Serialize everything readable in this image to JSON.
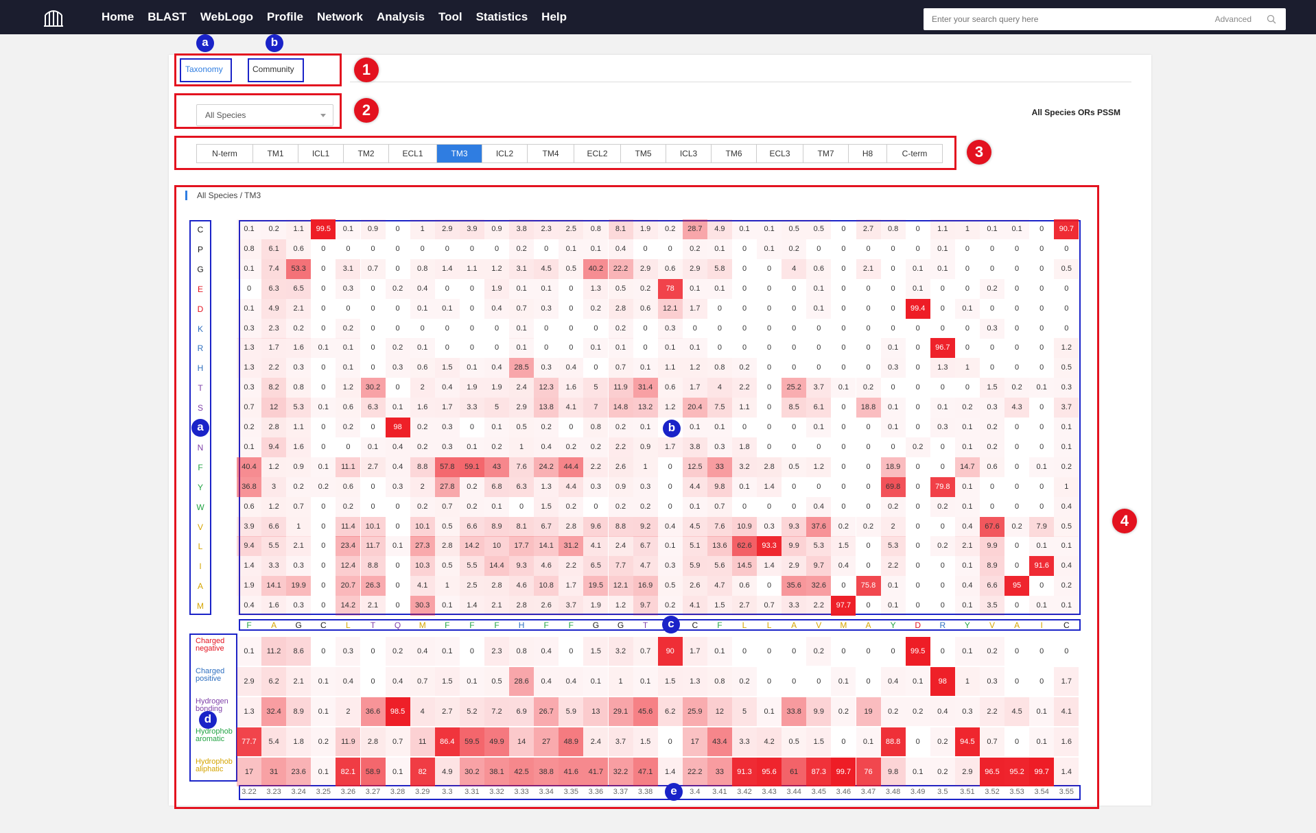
{
  "nav": {
    "items": [
      "Home",
      "BLAST",
      "WebLogo",
      "Profile",
      "Network",
      "Analysis",
      "Tool",
      "Statistics",
      "Help"
    ],
    "search_placeholder": "Enter your search query here",
    "advanced": "Advanced"
  },
  "tabs": [
    "Taxonomy",
    "Community"
  ],
  "species_select": "All Species",
  "pssm_title": "All Species ORs PSSM",
  "segments": [
    "N-term",
    "TM1",
    "ICL1",
    "TM2",
    "ECL1",
    "TM3",
    "ICL2",
    "TM4",
    "ECL2",
    "TM5",
    "ICL3",
    "TM6",
    "ECL3",
    "TM7",
    "H8",
    "C-term"
  ],
  "active_segment": "TM3",
  "breadcrumb": "All Species / TM3",
  "callouts": {
    "red": [
      "1",
      "2",
      "3",
      "4"
    ],
    "blue": [
      "a",
      "b",
      "a",
      "b",
      "c",
      "d",
      "e"
    ]
  },
  "aa_rows": [
    {
      "aa": "C",
      "color": "#1a1a1a"
    },
    {
      "aa": "P",
      "color": "#1a1a1a"
    },
    {
      "aa": "G",
      "color": "#1a1a1a"
    },
    {
      "aa": "E",
      "color": "#e3121f"
    },
    {
      "aa": "D",
      "color": "#e3121f"
    },
    {
      "aa": "K",
      "color": "#2e6fc0"
    },
    {
      "aa": "R",
      "color": "#2e6fc0"
    },
    {
      "aa": "H",
      "color": "#2e6fc0"
    },
    {
      "aa": "T",
      "color": "#7e3fa8"
    },
    {
      "aa": "S",
      "color": "#7e3fa8"
    },
    {
      "aa": "Q",
      "color": "#7e3fa8"
    },
    {
      "aa": "N",
      "color": "#7e3fa8"
    },
    {
      "aa": "F",
      "color": "#22a344"
    },
    {
      "aa": "Y",
      "color": "#22a344"
    },
    {
      "aa": "W",
      "color": "#22a344"
    },
    {
      "aa": "V",
      "color": "#d4a400"
    },
    {
      "aa": "L",
      "color": "#d4a400"
    },
    {
      "aa": "I",
      "color": "#d4a400"
    },
    {
      "aa": "A",
      "color": "#d4a400"
    },
    {
      "aa": "M",
      "color": "#d4a400"
    }
  ],
  "matrix": [
    [
      "0.1",
      "0.2",
      "1.1",
      "99.5",
      "0.1",
      "0.9",
      "0",
      "1",
      "2.9",
      "3.9",
      "0.9",
      "3.8",
      "2.3",
      "2.5",
      "0.8",
      "8.1",
      "1.9",
      "0.2",
      "28.7",
      "4.9",
      "0.1",
      "0.1",
      "0.5",
      "0.5",
      "0",
      "2.7",
      "0.8",
      "0",
      "1.1",
      "1",
      "0.1",
      "0.1",
      "0",
      "90.7"
    ],
    [
      "0.8",
      "6.1",
      "0.6",
      "0",
      "0",
      "0",
      "0",
      "0",
      "0",
      "0",
      "0",
      "0.2",
      "0",
      "0.1",
      "0.1",
      "0.4",
      "0",
      "0",
      "0.2",
      "0.1",
      "0",
      "0.1",
      "0.2",
      "0",
      "0",
      "0",
      "0",
      "0",
      "0.1",
      "0",
      "0",
      "0",
      "0",
      "0"
    ],
    [
      "0.1",
      "7.4",
      "53.3",
      "0",
      "3.1",
      "0.7",
      "0",
      "0.8",
      "1.4",
      "1.1",
      "1.2",
      "3.1",
      "4.5",
      "0.5",
      "40.2",
      "22.2",
      "2.9",
      "0.6",
      "2.9",
      "5.8",
      "0",
      "0",
      "4",
      "0.6",
      "0",
      "2.1",
      "0",
      "0.1",
      "0.1",
      "0",
      "0",
      "0",
      "0",
      "0.5"
    ],
    [
      "0",
      "6.3",
      "6.5",
      "0",
      "0.3",
      "0",
      "0.2",
      "0.4",
      "0",
      "0",
      "1.9",
      "0.1",
      "0.1",
      "0",
      "1.3",
      "0.5",
      "0.2",
      "78",
      "0.1",
      "0.1",
      "0",
      "0",
      "0",
      "0.1",
      "0",
      "0",
      "0",
      "0.1",
      "0",
      "0",
      "0.2",
      "0",
      "0",
      "0"
    ],
    [
      "0.1",
      "4.9",
      "2.1",
      "0",
      "0",
      "0",
      "0",
      "0.1",
      "0.1",
      "0",
      "0.4",
      "0.7",
      "0.3",
      "0",
      "0.2",
      "2.8",
      "0.6",
      "12.1",
      "1.7",
      "0",
      "0",
      "0",
      "0",
      "0.1",
      "0",
      "0",
      "0",
      "99.4",
      "0",
      "0.1",
      "0",
      "0",
      "0",
      "0"
    ],
    [
      "0.3",
      "2.3",
      "0.2",
      "0",
      "0.2",
      "0",
      "0",
      "0",
      "0",
      "0",
      "0",
      "0.1",
      "0",
      "0",
      "0",
      "0.2",
      "0",
      "0.3",
      "0",
      "0",
      "0",
      "0",
      "0",
      "0",
      "0",
      "0",
      "0",
      "0",
      "0",
      "0",
      "0.3",
      "0",
      "0",
      "0"
    ],
    [
      "1.3",
      "1.7",
      "1.6",
      "0.1",
      "0.1",
      "0",
      "0.2",
      "0.1",
      "0",
      "0",
      "0",
      "0.1",
      "0",
      "0",
      "0.1",
      "0.1",
      "0",
      "0.1",
      "0.1",
      "0",
      "0",
      "0",
      "0",
      "0",
      "0",
      "0",
      "0.1",
      "0",
      "96.7",
      "0",
      "0",
      "0",
      "0",
      "1.2"
    ],
    [
      "1.3",
      "2.2",
      "0.3",
      "0",
      "0.1",
      "0",
      "0.3",
      "0.6",
      "1.5",
      "0.1",
      "0.4",
      "28.5",
      "0.3",
      "0.4",
      "0",
      "0.7",
      "0.1",
      "1.1",
      "1.2",
      "0.8",
      "0.2",
      "0",
      "0",
      "0",
      "0",
      "0",
      "0.3",
      "0",
      "1.3",
      "1",
      "0",
      "0",
      "0",
      "0.5"
    ],
    [
      "0.3",
      "8.2",
      "0.8",
      "0",
      "1.2",
      "30.2",
      "0",
      "2",
      "0.4",
      "1.9",
      "1.9",
      "2.4",
      "12.3",
      "1.6",
      "5",
      "11.9",
      "31.4",
      "0.6",
      "1.7",
      "4",
      "2.2",
      "0",
      "25.2",
      "3.7",
      "0.1",
      "0.2",
      "0",
      "0",
      "0",
      "0",
      "1.5",
      "0.2",
      "0.1",
      "0.3"
    ],
    [
      "0.7",
      "12",
      "5.3",
      "0.1",
      "0.6",
      "6.3",
      "0.1",
      "1.6",
      "1.7",
      "3.3",
      "5",
      "2.9",
      "13.8",
      "4.1",
      "7",
      "14.8",
      "13.2",
      "1.2",
      "20.4",
      "7.5",
      "1.1",
      "0",
      "8.5",
      "6.1",
      "0",
      "18.8",
      "0.1",
      "0",
      "0.1",
      "0.2",
      "0.3",
      "4.3",
      "0",
      "3.7"
    ],
    [
      "0.2",
      "2.8",
      "1.1",
      "0",
      "0.2",
      "0",
      "98",
      "0.2",
      "0.3",
      "0",
      "0.1",
      "0.5",
      "0.2",
      "0",
      "0.8",
      "0.2",
      "0.1",
      "",
      "0.1",
      "0.1",
      "0",
      "0",
      "0",
      "0.1",
      "0",
      "0",
      "0.1",
      "0",
      "0.3",
      "0.1",
      "0.2",
      "0",
      "0",
      "0.1"
    ],
    [
      "0.1",
      "9.4",
      "1.6",
      "0",
      "0",
      "0.1",
      "0.4",
      "0.2",
      "0.3",
      "0.1",
      "0.2",
      "1",
      "0.4",
      "0.2",
      "0.2",
      "2.2",
      "0.9",
      "1.7",
      "3.8",
      "0.3",
      "1.8",
      "0",
      "0",
      "0",
      "0",
      "0",
      "0",
      "0.2",
      "0",
      "0.1",
      "0.2",
      "0",
      "0",
      "0.1"
    ],
    [
      "40.4",
      "1.2",
      "0.9",
      "0.1",
      "11.1",
      "2.7",
      "0.4",
      "8.8",
      "57.8",
      "59.1",
      "43",
      "7.6",
      "24.2",
      "44.4",
      "2.2",
      "2.6",
      "1",
      "0",
      "12.5",
      "33",
      "3.2",
      "2.8",
      "0.5",
      "1.2",
      "0",
      "0",
      "18.9",
      "0",
      "0",
      "14.7",
      "0.6",
      "0",
      "0.1",
      "0.2"
    ],
    [
      "36.8",
      "3",
      "0.2",
      "0.2",
      "0.6",
      "0",
      "0.3",
      "2",
      "27.8",
      "0.2",
      "6.8",
      "6.3",
      "1.3",
      "4.4",
      "0.3",
      "0.9",
      "0.3",
      "0",
      "4.4",
      "9.8",
      "0.1",
      "1.4",
      "0",
      "0",
      "0",
      "0",
      "69.8",
      "0",
      "79.8",
      "0.1",
      "0",
      "0",
      "0",
      "1"
    ],
    [
      "0.6",
      "1.2",
      "0.7",
      "0",
      "0.2",
      "0",
      "0",
      "0.2",
      "0.7",
      "0.2",
      "0.1",
      "0",
      "1.5",
      "0.2",
      "0",
      "0.2",
      "0.2",
      "0",
      "0.1",
      "0.7",
      "0",
      "0",
      "0",
      "0.4",
      "0",
      "0",
      "0.2",
      "0",
      "0.2",
      "0.1",
      "0",
      "0",
      "0",
      "0.4"
    ],
    [
      "3.9",
      "6.6",
      "1",
      "0",
      "11.4",
      "10.1",
      "0",
      "10.1",
      "0.5",
      "6.6",
      "8.9",
      "8.1",
      "6.7",
      "2.8",
      "9.6",
      "8.8",
      "9.2",
      "0.4",
      "4.5",
      "7.6",
      "10.9",
      "0.3",
      "9.3",
      "37.6",
      "0.2",
      "0.2",
      "2",
      "0",
      "0",
      "0.4",
      "67.6",
      "0.2",
      "7.9",
      "0.5"
    ],
    [
      "9.4",
      "5.5",
      "2.1",
      "0",
      "23.4",
      "11.7",
      "0.1",
      "27.3",
      "2.8",
      "14.2",
      "10",
      "17.7",
      "14.1",
      "31.2",
      "4.1",
      "2.4",
      "6.7",
      "0.1",
      "5.1",
      "13.6",
      "62.6",
      "93.3",
      "9.9",
      "5.3",
      "1.5",
      "0",
      "5.3",
      "0",
      "0.2",
      "2.1",
      "9.9",
      "0",
      "0.1",
      "0.1"
    ],
    [
      "1.4",
      "3.3",
      "0.3",
      "0",
      "12.4",
      "8.8",
      "0",
      "10.3",
      "0.5",
      "5.5",
      "14.4",
      "9.3",
      "4.6",
      "2.2",
      "6.5",
      "7.7",
      "4.7",
      "0.3",
      "5.9",
      "5.6",
      "14.5",
      "1.4",
      "2.9",
      "9.7",
      "0.4",
      "0",
      "2.2",
      "0",
      "0",
      "0.1",
      "8.9",
      "0",
      "91.6",
      "0.4"
    ],
    [
      "1.9",
      "14.1",
      "19.9",
      "0",
      "20.7",
      "26.3",
      "0",
      "4.1",
      "1",
      "2.5",
      "2.8",
      "4.6",
      "10.8",
      "1.7",
      "19.5",
      "12.1",
      "16.9",
      "0.5",
      "2.6",
      "4.7",
      "0.6",
      "0",
      "35.6",
      "32.6",
      "0",
      "75.8",
      "0.1",
      "0",
      "0",
      "0.4",
      "6.6",
      "95",
      "0",
      "0.2"
    ],
    [
      "0.4",
      "1.6",
      "0.3",
      "0",
      "14.2",
      "2.1",
      "0",
      "30.3",
      "0.1",
      "1.4",
      "2.1",
      "2.8",
      "2.6",
      "3.7",
      "1.9",
      "1.2",
      "9.7",
      "0.2",
      "4.1",
      "1.5",
      "2.7",
      "0.7",
      "3.3",
      "2.2",
      "97.7",
      "0",
      "0.1",
      "0",
      "0",
      "0.1",
      "3.5",
      "0",
      "0.1",
      "0.1"
    ]
  ],
  "consensus": [
    {
      "aa": "F",
      "color": "#22a344"
    },
    {
      "aa": "A",
      "color": "#d4a400"
    },
    {
      "aa": "G",
      "color": "#1a1a1a"
    },
    {
      "aa": "C",
      "color": "#1a1a1a"
    },
    {
      "aa": "L",
      "color": "#d4a400"
    },
    {
      "aa": "T",
      "color": "#7e3fa8"
    },
    {
      "aa": "Q",
      "color": "#7e3fa8"
    },
    {
      "aa": "M",
      "color": "#d4a400"
    },
    {
      "aa": "F",
      "color": "#22a344"
    },
    {
      "aa": "F",
      "color": "#22a344"
    },
    {
      "aa": "F",
      "color": "#22a344"
    },
    {
      "aa": "H",
      "color": "#2e6fc0"
    },
    {
      "aa": "F",
      "color": "#22a344"
    },
    {
      "aa": "F",
      "color": "#22a344"
    },
    {
      "aa": "G",
      "color": "#1a1a1a"
    },
    {
      "aa": "G",
      "color": "#1a1a1a"
    },
    {
      "aa": "T",
      "color": "#7e3fa8"
    },
    {
      "aa": "",
      "color": "#1a1a1a"
    },
    {
      "aa": "C",
      "color": "#1a1a1a"
    },
    {
      "aa": "F",
      "color": "#22a344"
    },
    {
      "aa": "L",
      "color": "#d4a400"
    },
    {
      "aa": "L",
      "color": "#d4a400"
    },
    {
      "aa": "A",
      "color": "#d4a400"
    },
    {
      "aa": "V",
      "color": "#d4a400"
    },
    {
      "aa": "M",
      "color": "#d4a400"
    },
    {
      "aa": "A",
      "color": "#d4a400"
    },
    {
      "aa": "Y",
      "color": "#22a344"
    },
    {
      "aa": "D",
      "color": "#e3121f"
    },
    {
      "aa": "R",
      "color": "#2e6fc0"
    },
    {
      "aa": "Y",
      "color": "#22a344"
    },
    {
      "aa": "V",
      "color": "#d4a400"
    },
    {
      "aa": "A",
      "color": "#d4a400"
    },
    {
      "aa": "I",
      "color": "#d4a400"
    },
    {
      "aa": "C",
      "color": "#1a1a1a"
    }
  ],
  "categories": [
    {
      "name": "Charged negative",
      "line1": "Charged",
      "line2": "negative",
      "color": "#e3121f"
    },
    {
      "name": "Charged positive",
      "line1": "Charged",
      "line2": "positive",
      "color": "#2e6fc0"
    },
    {
      "name": "Hydrogen bonding",
      "line1": "Hydrogen",
      "line2": "bonding",
      "color": "#7e3fa8"
    },
    {
      "name": "Hydrophobic aromatic",
      "line1": "Hydrophob",
      "line2": "aromatic",
      "color": "#22a344"
    },
    {
      "name": "Hydrophobic aliphatic",
      "line1": "Hydrophob",
      "line2": "aliphatic",
      "color": "#d4a400"
    }
  ],
  "category_matrix": [
    [
      "0.1",
      "11.2",
      "8.6",
      "0",
      "0.3",
      "0",
      "0.2",
      "0.4",
      "0.1",
      "0",
      "2.3",
      "0.8",
      "0.4",
      "0",
      "1.5",
      "3.2",
      "0.7",
      "90",
      "1.7",
      "0.1",
      "0",
      "0",
      "0",
      "0.2",
      "0",
      "0",
      "0",
      "99.5",
      "0",
      "0.1",
      "0.2",
      "0",
      "0",
      "0"
    ],
    [
      "2.9",
      "6.2",
      "2.1",
      "0.1",
      "0.4",
      "0",
      "0.4",
      "0.7",
      "1.5",
      "0.1",
      "0.5",
      "28.6",
      "0.4",
      "0.4",
      "0.1",
      "1",
      "0.1",
      "1.5",
      "1.3",
      "0.8",
      "0.2",
      "0",
      "0",
      "0",
      "0.1",
      "0",
      "0.4",
      "0.1",
      "98",
      "1",
      "0.3",
      "0",
      "0",
      "1.7"
    ],
    [
      "1.3",
      "32.4",
      "8.9",
      "0.1",
      "2",
      "36.6",
      "98.5",
      "4",
      "2.7",
      "5.2",
      "7.2",
      "6.9",
      "26.7",
      "5.9",
      "13",
      "29.1",
      "45.6",
      "6.2",
      "25.9",
      "12",
      "5",
      "0.1",
      "33.8",
      "9.9",
      "0.2",
      "19",
      "0.2",
      "0.2",
      "0.4",
      "0.3",
      "2.2",
      "4.5",
      "0.1",
      "4.1"
    ],
    [
      "77.7",
      "5.4",
      "1.8",
      "0.2",
      "11.9",
      "2.8",
      "0.7",
      "11",
      "86.4",
      "59.5",
      "49.9",
      "14",
      "27",
      "48.9",
      "2.4",
      "3.7",
      "1.5",
      "0",
      "17",
      "43.4",
      "3.3",
      "4.2",
      "0.5",
      "1.5",
      "0",
      "0.1",
      "88.8",
      "0",
      "0.2",
      "94.5",
      "0.7",
      "0",
      "0.1",
      "1.6"
    ],
    [
      "17",
      "31",
      "23.6",
      "0.1",
      "82.1",
      "58.9",
      "0.1",
      "82",
      "4.9",
      "30.2",
      "38.1",
      "42.5",
      "38.8",
      "41.6",
      "41.7",
      "32.2",
      "47.1",
      "1.4",
      "22.2",
      "33",
      "91.3",
      "95.6",
      "61",
      "87.3",
      "99.7",
      "76",
      "9.8",
      "0.1",
      "0.2",
      "2.9",
      "96.5",
      "95.2",
      "99.7",
      "1.4"
    ]
  ],
  "positions": [
    "3.22",
    "3.23",
    "3.24",
    "3.25",
    "3.26",
    "3.27",
    "3.28",
    "3.29",
    "3.3",
    "3.31",
    "3.32",
    "3.33",
    "3.34",
    "3.35",
    "3.36",
    "3.37",
    "3.38",
    "",
    "3.4",
    "3.41",
    "3.42",
    "3.43",
    "3.44",
    "3.45",
    "3.46",
    "3.47",
    "3.48",
    "3.49",
    "3.5",
    "3.51",
    "3.52",
    "3.53",
    "3.54",
    "3.55"
  ],
  "colors": {
    "accent": "#2f7de1",
    "callout_red": "#e3121f",
    "callout_blue": "#1a23c8",
    "heat_max": "#ee1c25"
  }
}
